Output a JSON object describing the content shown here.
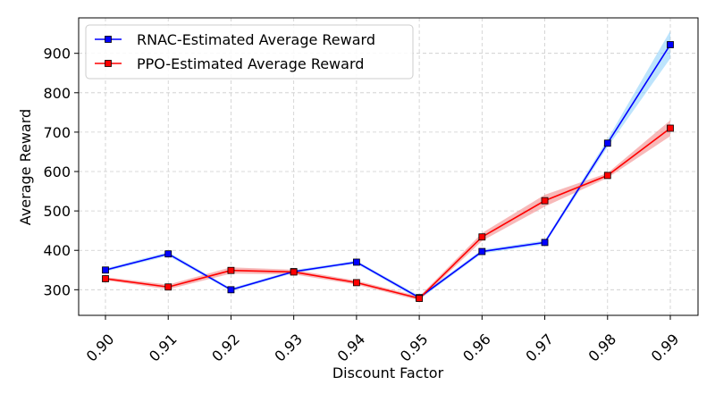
{
  "chart_data": {
    "type": "line",
    "xlabel": "Discount Factor",
    "ylabel": "Average Reward",
    "x": [
      0.9,
      0.91,
      0.92,
      0.93,
      0.94,
      0.95,
      0.96,
      0.97,
      0.98,
      0.99
    ],
    "x_tick_labels": [
      "0.90",
      "0.91",
      "0.92",
      "0.93",
      "0.94",
      "0.95",
      "0.96",
      "0.97",
      "0.98",
      "0.99"
    ],
    "y_ticks": [
      300,
      400,
      500,
      600,
      700,
      800,
      900
    ],
    "ylim": [
      235,
      990
    ],
    "grid": true,
    "legend_position": "upper-left",
    "series": [
      {
        "name": "RNAC-Estimated Average Reward",
        "color": "#0000ff",
        "band_color": "#87cefa",
        "marker": "square",
        "values": [
          350,
          391,
          300,
          346,
          370,
          280,
          397,
          420,
          672,
          922
        ],
        "band_halfwidth": [
          4,
          5,
          4,
          4,
          4,
          5,
          5,
          5,
          10,
          35
        ]
      },
      {
        "name": "PPO-Estimated Average Reward",
        "color": "#ff0000",
        "band_color": "#f08080",
        "marker": "square",
        "values": [
          328,
          307,
          349,
          345,
          318,
          278,
          434,
          526,
          590,
          710
        ],
        "band_halfwidth": [
          4,
          6,
          8,
          6,
          5,
          5,
          10,
          15,
          6,
          20
        ]
      }
    ]
  }
}
